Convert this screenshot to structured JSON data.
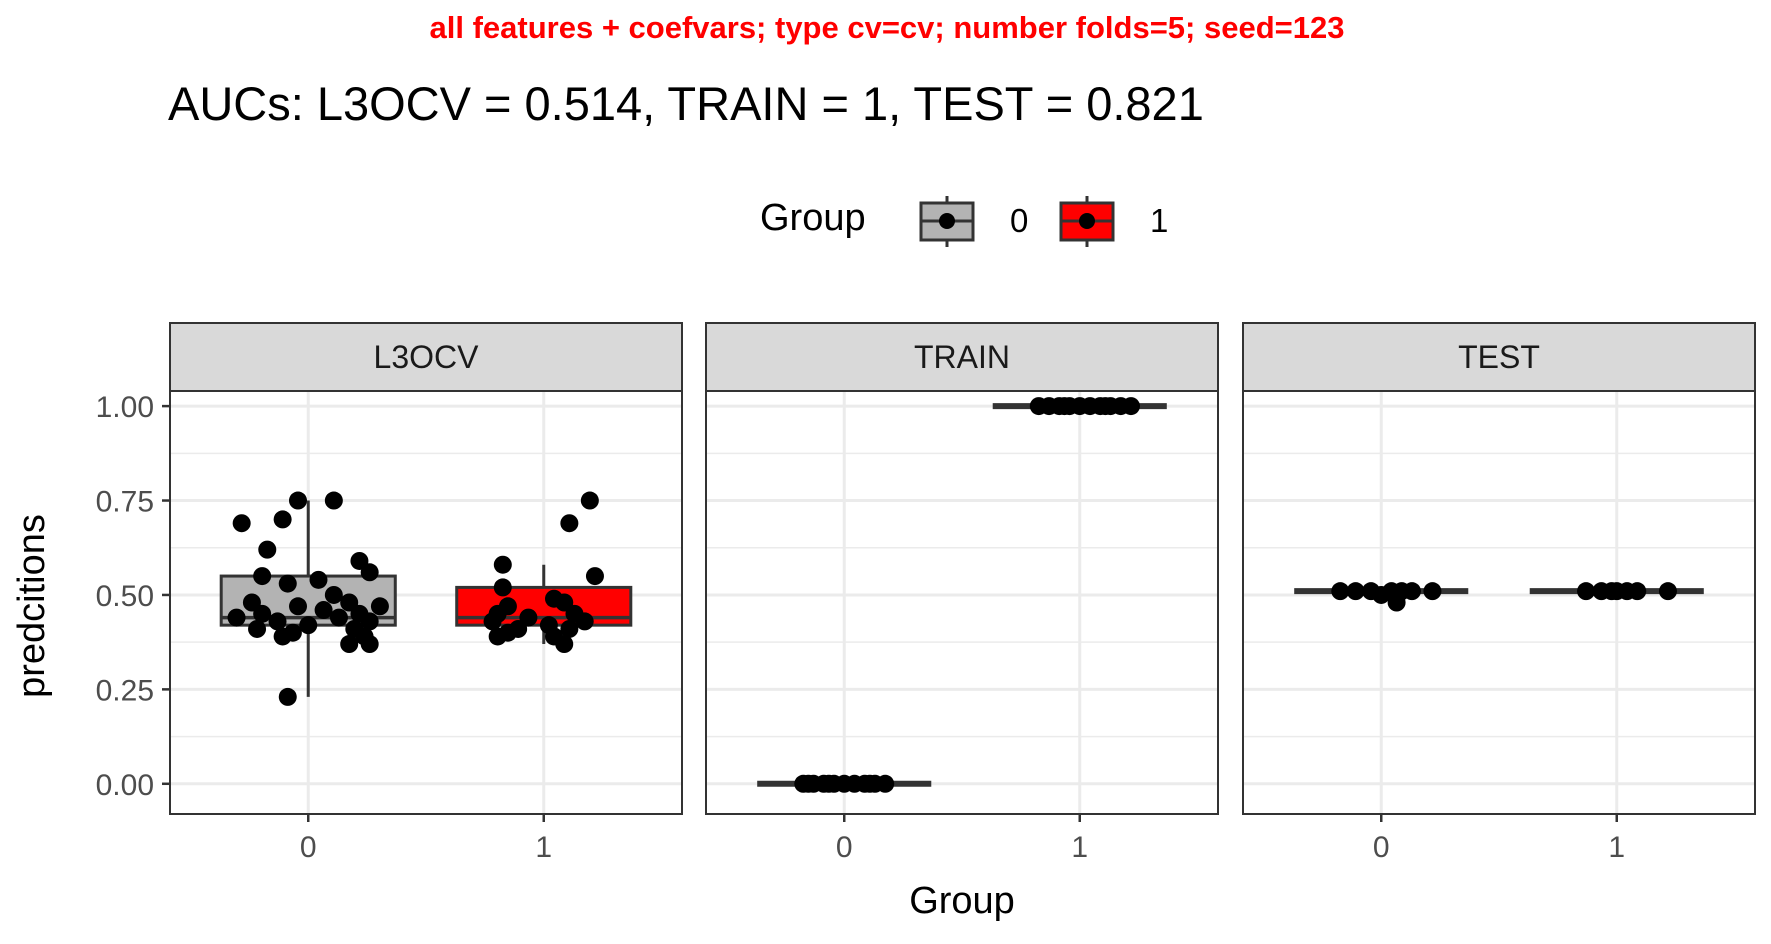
{
  "colors": {
    "subtitle": "#ff0000",
    "group_0_fill": "#b3b3b3",
    "group_1_fill": "#ff0000",
    "panel_border": "#333333",
    "strip_fill": "#d9d9d9",
    "grid": "#ebebeb",
    "point": "#000000"
  },
  "chart_data": {
    "type": "boxplot",
    "subtitle": "all features + coefvars; type cv=cv; number folds=5; seed=123",
    "title": "AUCs: L3OCV = 0.514, TRAIN = 1, TEST = 0.821",
    "xlabel": "Group",
    "ylabel": "predcitions",
    "ylim": [
      -0.08,
      1.04
    ],
    "yticks": [
      "0.00",
      "0.25",
      "0.50",
      "0.75",
      "1.00"
    ],
    "ytick_values": [
      0,
      0.25,
      0.5,
      0.75,
      1.0
    ],
    "categories": [
      "0",
      "1"
    ],
    "grid": true,
    "legend": {
      "position": "top",
      "title": "Group",
      "entries": [
        "0",
        "1"
      ]
    },
    "panels": [
      {
        "name": "L3OCV",
        "boxes": [
          {
            "group": "0",
            "q1": 0.42,
            "median": 0.44,
            "q3": 0.55,
            "whisker_low": 0.23,
            "whisker_high": 0.75,
            "points": [
              [
                -0.13,
                0.69
              ],
              [
                -0.05,
                0.7
              ],
              [
                -0.02,
                0.75
              ],
              [
                0.05,
                0.75
              ],
              [
                -0.08,
                0.62
              ],
              [
                0.1,
                0.59
              ],
              [
                -0.09,
                0.55
              ],
              [
                0.12,
                0.56
              ],
              [
                0.02,
                0.54
              ],
              [
                -0.04,
                0.53
              ],
              [
                0.05,
                0.5
              ],
              [
                -0.11,
                0.48
              ],
              [
                0.08,
                0.48
              ],
              [
                -0.02,
                0.47
              ],
              [
                0.14,
                0.47
              ],
              [
                0.03,
                0.46
              ],
              [
                -0.09,
                0.45
              ],
              [
                0.1,
                0.45
              ],
              [
                -0.14,
                0.44
              ],
              [
                0.06,
                0.44
              ],
              [
                -0.06,
                0.43
              ],
              [
                0.12,
                0.43
              ],
              [
                0.0,
                0.42
              ],
              [
                -0.1,
                0.41
              ],
              [
                0.09,
                0.41
              ],
              [
                -0.03,
                0.4
              ],
              [
                0.11,
                0.39
              ],
              [
                -0.05,
                0.39
              ],
              [
                0.08,
                0.37
              ],
              [
                0.12,
                0.37
              ],
              [
                -0.04,
                0.23
              ]
            ]
          },
          {
            "group": "1",
            "q1": 0.42,
            "median": 0.44,
            "q3": 0.52,
            "whisker_low": 0.37,
            "whisker_high": 0.58,
            "points": [
              [
                0.09,
                0.75
              ],
              [
                0.05,
                0.69
              ],
              [
                -0.08,
                0.58
              ],
              [
                0.1,
                0.55
              ],
              [
                -0.08,
                0.52
              ],
              [
                0.02,
                0.49
              ],
              [
                0.04,
                0.48
              ],
              [
                -0.07,
                0.47
              ],
              [
                -0.09,
                0.45
              ],
              [
                0.06,
                0.45
              ],
              [
                -0.03,
                0.44
              ],
              [
                0.08,
                0.43
              ],
              [
                -0.1,
                0.43
              ],
              [
                0.01,
                0.42
              ],
              [
                -0.05,
                0.41
              ],
              [
                0.05,
                0.41
              ],
              [
                -0.07,
                0.4
              ],
              [
                0.02,
                0.39
              ],
              [
                -0.09,
                0.39
              ],
              [
                0.04,
                0.37
              ]
            ]
          }
        ]
      },
      {
        "name": "TRAIN",
        "boxes": [
          {
            "group": "0",
            "q1": 0.0,
            "median": 0.0,
            "q3": 0.0,
            "whisker_low": 0.0,
            "whisker_high": 0.0,
            "points": [
              [
                -0.08,
                0.0
              ],
              [
                -0.06,
                0.0
              ],
              [
                -0.04,
                0.0
              ],
              [
                -0.02,
                0.0
              ],
              [
                0.0,
                0.0
              ],
              [
                0.02,
                0.0
              ],
              [
                0.04,
                0.0
              ],
              [
                0.06,
                0.0
              ],
              [
                0.08,
                0.0
              ],
              [
                -0.03,
                0.0
              ],
              [
                0.05,
                0.0
              ],
              [
                -0.07,
                0.0
              ]
            ]
          },
          {
            "group": "1",
            "q1": 1.0,
            "median": 1.0,
            "q3": 1.0,
            "whisker_low": 1.0,
            "whisker_high": 1.0,
            "points": [
              [
                -0.08,
                1.0
              ],
              [
                -0.06,
                1.0
              ],
              [
                -0.04,
                1.0
              ],
              [
                -0.02,
                1.0
              ],
              [
                0.0,
                1.0
              ],
              [
                0.02,
                1.0
              ],
              [
                0.04,
                1.0
              ],
              [
                0.06,
                1.0
              ],
              [
                0.08,
                1.0
              ],
              [
                0.1,
                1.0
              ],
              [
                -0.03,
                1.0
              ],
              [
                0.05,
                1.0
              ]
            ]
          }
        ]
      },
      {
        "name": "TEST",
        "boxes": [
          {
            "group": "0",
            "q1": 0.51,
            "median": 0.51,
            "q3": 0.51,
            "whisker_low": 0.51,
            "whisker_high": 0.51,
            "points": [
              [
                -0.08,
                0.51
              ],
              [
                -0.05,
                0.51
              ],
              [
                -0.02,
                0.51
              ],
              [
                0.02,
                0.51
              ],
              [
                0.04,
                0.51
              ],
              [
                0.06,
                0.51
              ],
              [
                0.1,
                0.51
              ],
              [
                0.0,
                0.5
              ],
              [
                0.03,
                0.48
              ]
            ]
          },
          {
            "group": "1",
            "q1": 0.51,
            "median": 0.51,
            "q3": 0.51,
            "whisker_low": 0.51,
            "whisker_high": 0.51,
            "points": [
              [
                -0.06,
                0.51
              ],
              [
                -0.03,
                0.51
              ],
              [
                -0.01,
                0.51
              ],
              [
                0.0,
                0.51
              ],
              [
                0.02,
                0.51
              ],
              [
                0.04,
                0.51
              ],
              [
                0.1,
                0.51
              ]
            ]
          }
        ]
      }
    ]
  }
}
